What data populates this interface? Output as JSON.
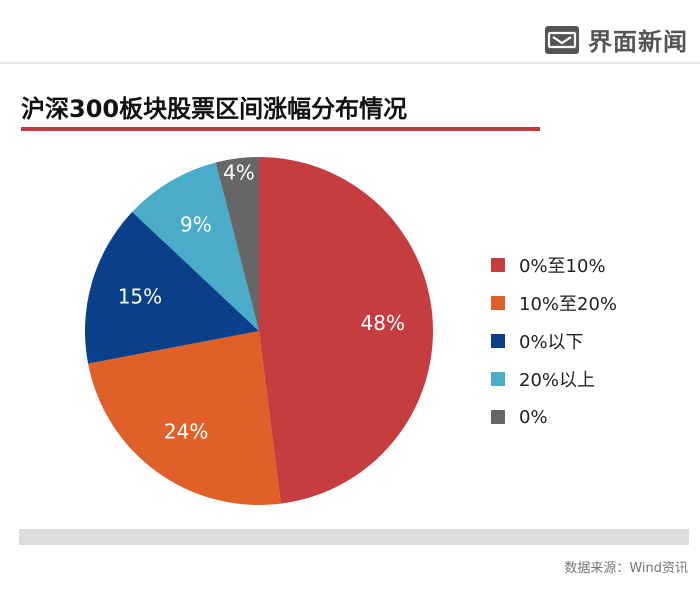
{
  "brand": {
    "name": "界面新闻",
    "logo_icon": "jiemian-logo-icon"
  },
  "title": "沪深300板块股票区间涨幅分布情况",
  "source": "数据来源：Wind资讯",
  "chart_data": {
    "type": "pie",
    "start_angle": "12 o'clock",
    "direction": "clockwise",
    "legend_position": "right",
    "slices": [
      {
        "label": "0%至10%",
        "value": 48,
        "display": "48%",
        "color": "#c53d3f",
        "text_color": "#ffffff"
      },
      {
        "label": "10%至20%",
        "value": 24,
        "display": "24%",
        "color": "#e0602a",
        "text_color": "#ffffff"
      },
      {
        "label": "0%以下",
        "value": 15,
        "display": "15%",
        "color": "#0a3f8a",
        "text_color": "#ffffff"
      },
      {
        "label": "20%以上",
        "value": 9,
        "display": "9%",
        "color": "#4aacc8",
        "text_color": "#ffffff"
      },
      {
        "label": "0%",
        "value": 4,
        "display": "4%",
        "color": "#666666",
        "text_color": "#ffffff"
      }
    ]
  }
}
